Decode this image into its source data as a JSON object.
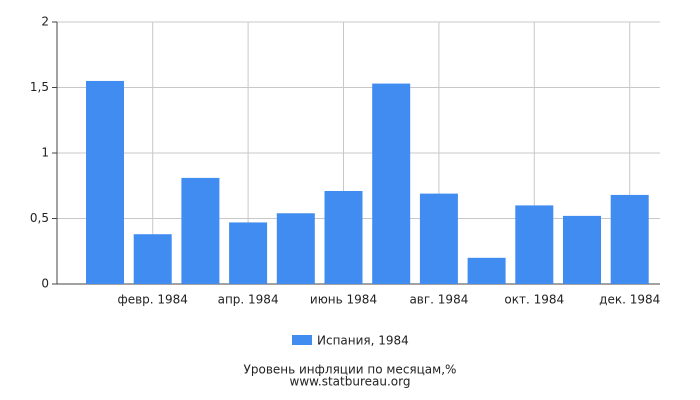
{
  "chart_data": {
    "type": "bar",
    "title": "Уровень инфляции по месяцам,%",
    "source": "www.statbureau.org",
    "categories": [
      null,
      "февр. 1984",
      null,
      "апр. 1984",
      null,
      "июнь 1984",
      null,
      "авг. 1984",
      null,
      "окт. 1984",
      null,
      "дек. 1984"
    ],
    "series": [
      {
        "name": "Испания, 1984",
        "color": "#418cf0",
        "values": [
          1.55,
          0.38,
          0.81,
          0.47,
          0.54,
          0.71,
          1.53,
          0.69,
          0.2,
          0.6,
          0.52,
          0.68
        ]
      }
    ],
    "ylim": [
      0,
      2
    ],
    "yticks": [
      0,
      {
        "value": 0.5,
        "label": "0,5"
      },
      1,
      {
        "value": 1.5,
        "label": "1,5"
      },
      2
    ],
    "grid": true
  }
}
